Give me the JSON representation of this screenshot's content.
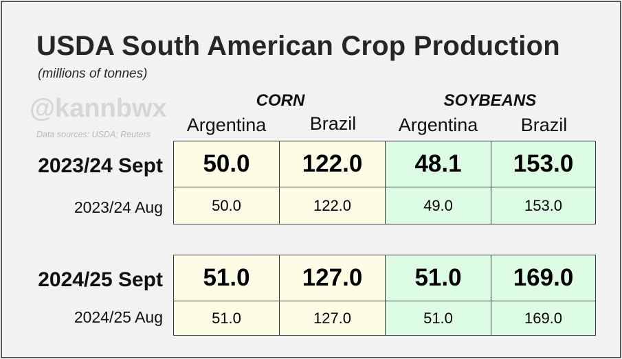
{
  "chart_data": {
    "type": "table",
    "title": "USDA South American Crop Production",
    "subtitle": "(millions of tonnes)",
    "watermark": "@kannbwx",
    "sources": "Data sources: USDA; Reuters",
    "groups": [
      {
        "name": "CORN",
        "columns": [
          "Argentina",
          "Brazil"
        ]
      },
      {
        "name": "SOYBEANS",
        "columns": [
          "Argentina",
          "Brazil"
        ]
      }
    ],
    "rows": [
      {
        "label": "2023/24 Sept",
        "values": [
          "50.0",
          "122.0",
          "48.1",
          "153.0"
        ],
        "emphasis": true
      },
      {
        "label": "2023/24 Aug",
        "values": [
          "50.0",
          "122.0",
          "49.0",
          "153.0"
        ],
        "emphasis": false
      },
      {
        "label": "2024/25 Sept",
        "values": [
          "51.0",
          "127.0",
          "51.0",
          "169.0"
        ],
        "emphasis": true
      },
      {
        "label": "2024/25 Aug",
        "values": [
          "51.0",
          "127.0",
          "51.0",
          "169.0"
        ],
        "emphasis": false
      }
    ],
    "colors": {
      "corn_fill": "#fdfde6",
      "soybeans_fill": "#dcfde4",
      "background": "#f2f2f2"
    }
  }
}
